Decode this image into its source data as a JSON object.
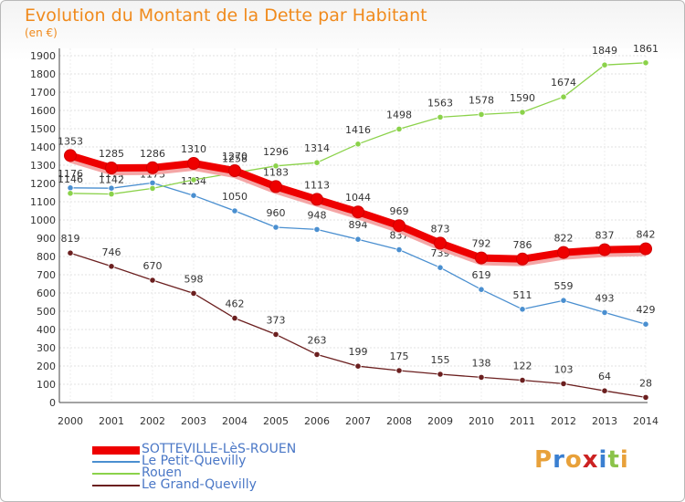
{
  "title": "Evolution du Montant de la Dette par Habitant",
  "subtitle": "(en €)",
  "logo": {
    "text": "Proxiti",
    "colors": [
      "#e8a13a",
      "#3a7fd1",
      "#e8a13a",
      "#cc2222",
      "#3a7fd1",
      "#8bc34a",
      "#e8a13a"
    ]
  },
  "chart_data": {
    "type": "line",
    "title": "Evolution du Montant de la Dette par Habitant",
    "ylabel": "(en €)",
    "x": [
      "2000",
      "2001",
      "2002",
      "2003",
      "2004",
      "2005",
      "2006",
      "2007",
      "2008",
      "2009",
      "2010",
      "2011",
      "2012",
      "2013",
      "2014"
    ],
    "ylim": [
      0,
      1900
    ],
    "yticks": [
      0,
      100,
      200,
      300,
      400,
      500,
      600,
      700,
      800,
      900,
      1000,
      1100,
      1200,
      1300,
      1400,
      1500,
      1600,
      1700,
      1800,
      1900
    ],
    "grid": true,
    "legend_position": "bottom",
    "series": [
      {
        "name": "SOTTEVILLE-LèS-ROUEN",
        "color": "#ee0000",
        "values": [
          1353,
          1285,
          1286,
          1310,
          1270,
          1183,
          1113,
          1044,
          969,
          873,
          792,
          786,
          822,
          837,
          842
        ]
      },
      {
        "name": "Le Petit-Quevilly",
        "color": "#4a8fd0",
        "values": [
          1176,
          1174,
          1203,
          1134,
          1050,
          960,
          948,
          894,
          837,
          739,
          619,
          511,
          559,
          493,
          429
        ]
      },
      {
        "name": "Rouen",
        "color": "#8bd24a",
        "values": [
          1146,
          1142,
          1173,
          1220,
          1258,
          1296,
          1314,
          1416,
          1498,
          1563,
          1578,
          1590,
          1674,
          1849,
          1861
        ]
      },
      {
        "name": "Le Grand-Quevilly",
        "color": "#6b1f1f",
        "values": [
          819,
          746,
          670,
          598,
          462,
          373,
          263,
          199,
          175,
          155,
          138,
          122,
          103,
          64,
          28
        ]
      }
    ]
  }
}
